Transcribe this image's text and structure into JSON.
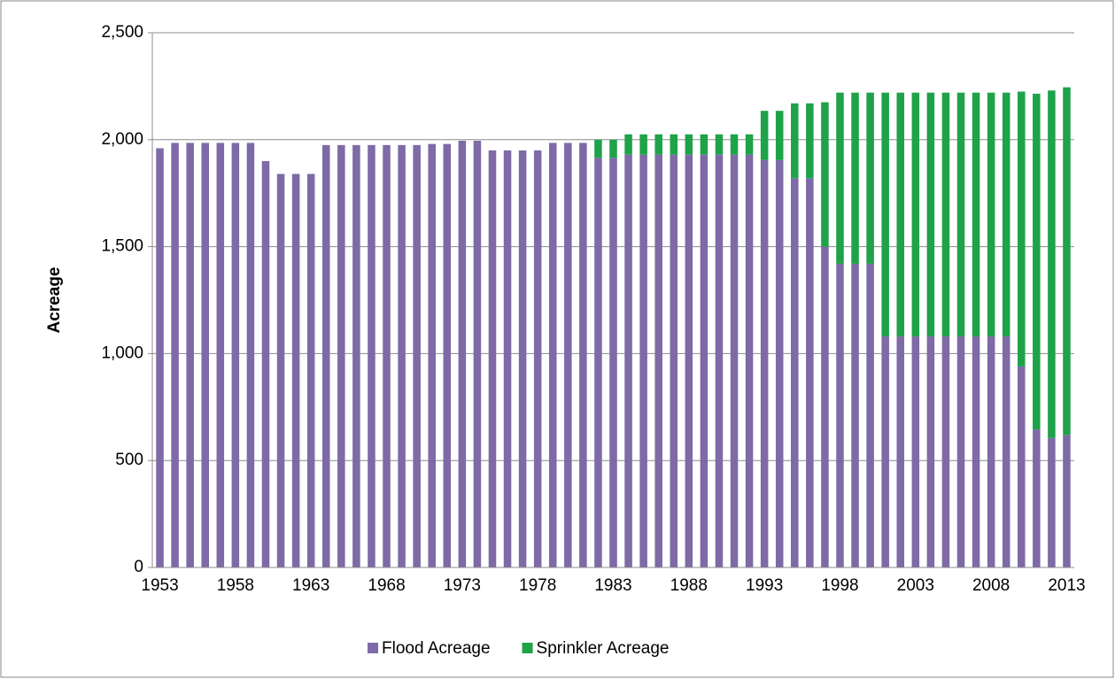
{
  "chart_data": {
    "type": "stacked_bar",
    "y_label": "Acreage",
    "categories": [
      "1953",
      null,
      null,
      null,
      null,
      "1958",
      null,
      null,
      null,
      null,
      "1963",
      null,
      null,
      null,
      null,
      "1968",
      null,
      null,
      null,
      null,
      "1973",
      null,
      null,
      null,
      null,
      "1978",
      null,
      null,
      null,
      null,
      "1983",
      null,
      null,
      null,
      null,
      "1988",
      null,
      null,
      null,
      null,
      "1993",
      null,
      null,
      null,
      null,
      "1998",
      null,
      null,
      null,
      null,
      "2003",
      null,
      null,
      null,
      null,
      "2008",
      null,
      null,
      null,
      null,
      "2013"
    ],
    "series": [
      {
        "name": "Flood Acreage",
        "color": "#7e6aa6",
        "values": [
          1960,
          1985,
          1985,
          1985,
          1985,
          1985,
          1985,
          1900,
          1840,
          1840,
          1840,
          1975,
          1975,
          1975,
          1975,
          1975,
          1975,
          1975,
          1980,
          1980,
          1995,
          1995,
          1950,
          1950,
          1950,
          1950,
          1985,
          1985,
          1985,
          1915,
          1915,
          1930,
          1930,
          1930,
          1930,
          1930,
          1930,
          1930,
          1930,
          1930,
          1905,
          1905,
          1820,
          1820,
          1500,
          1420,
          1420,
          1420,
          1080,
          1080,
          1080,
          1080,
          1080,
          1080,
          1080,
          1080,
          1080,
          940,
          645,
          605,
          620
        ]
      },
      {
        "name": "Sprinkler Acreage",
        "color": "#1fa24a",
        "values": [
          0,
          0,
          0,
          0,
          0,
          0,
          0,
          0,
          0,
          0,
          0,
          0,
          0,
          0,
          0,
          0,
          0,
          0,
          0,
          0,
          0,
          0,
          0,
          0,
          0,
          0,
          0,
          0,
          0,
          85,
          85,
          95,
          95,
          95,
          95,
          95,
          95,
          95,
          95,
          95,
          230,
          230,
          350,
          350,
          675,
          800,
          800,
          800,
          1140,
          1140,
          1140,
          1140,
          1140,
          1140,
          1140,
          1140,
          1140,
          1285,
          1570,
          1625,
          1625
        ]
      }
    ],
    "ylim": [
      0,
      2500
    ],
    "yticks": [
      0,
      500,
      {
        "value": 1000,
        "label": "1,000"
      },
      {
        "value": 1500,
        "label": "1,500"
      },
      {
        "value": 2000,
        "label": "2,000"
      },
      {
        "value": 2500,
        "label": "2,500"
      }
    ],
    "grid": true,
    "legend": "bottom"
  }
}
